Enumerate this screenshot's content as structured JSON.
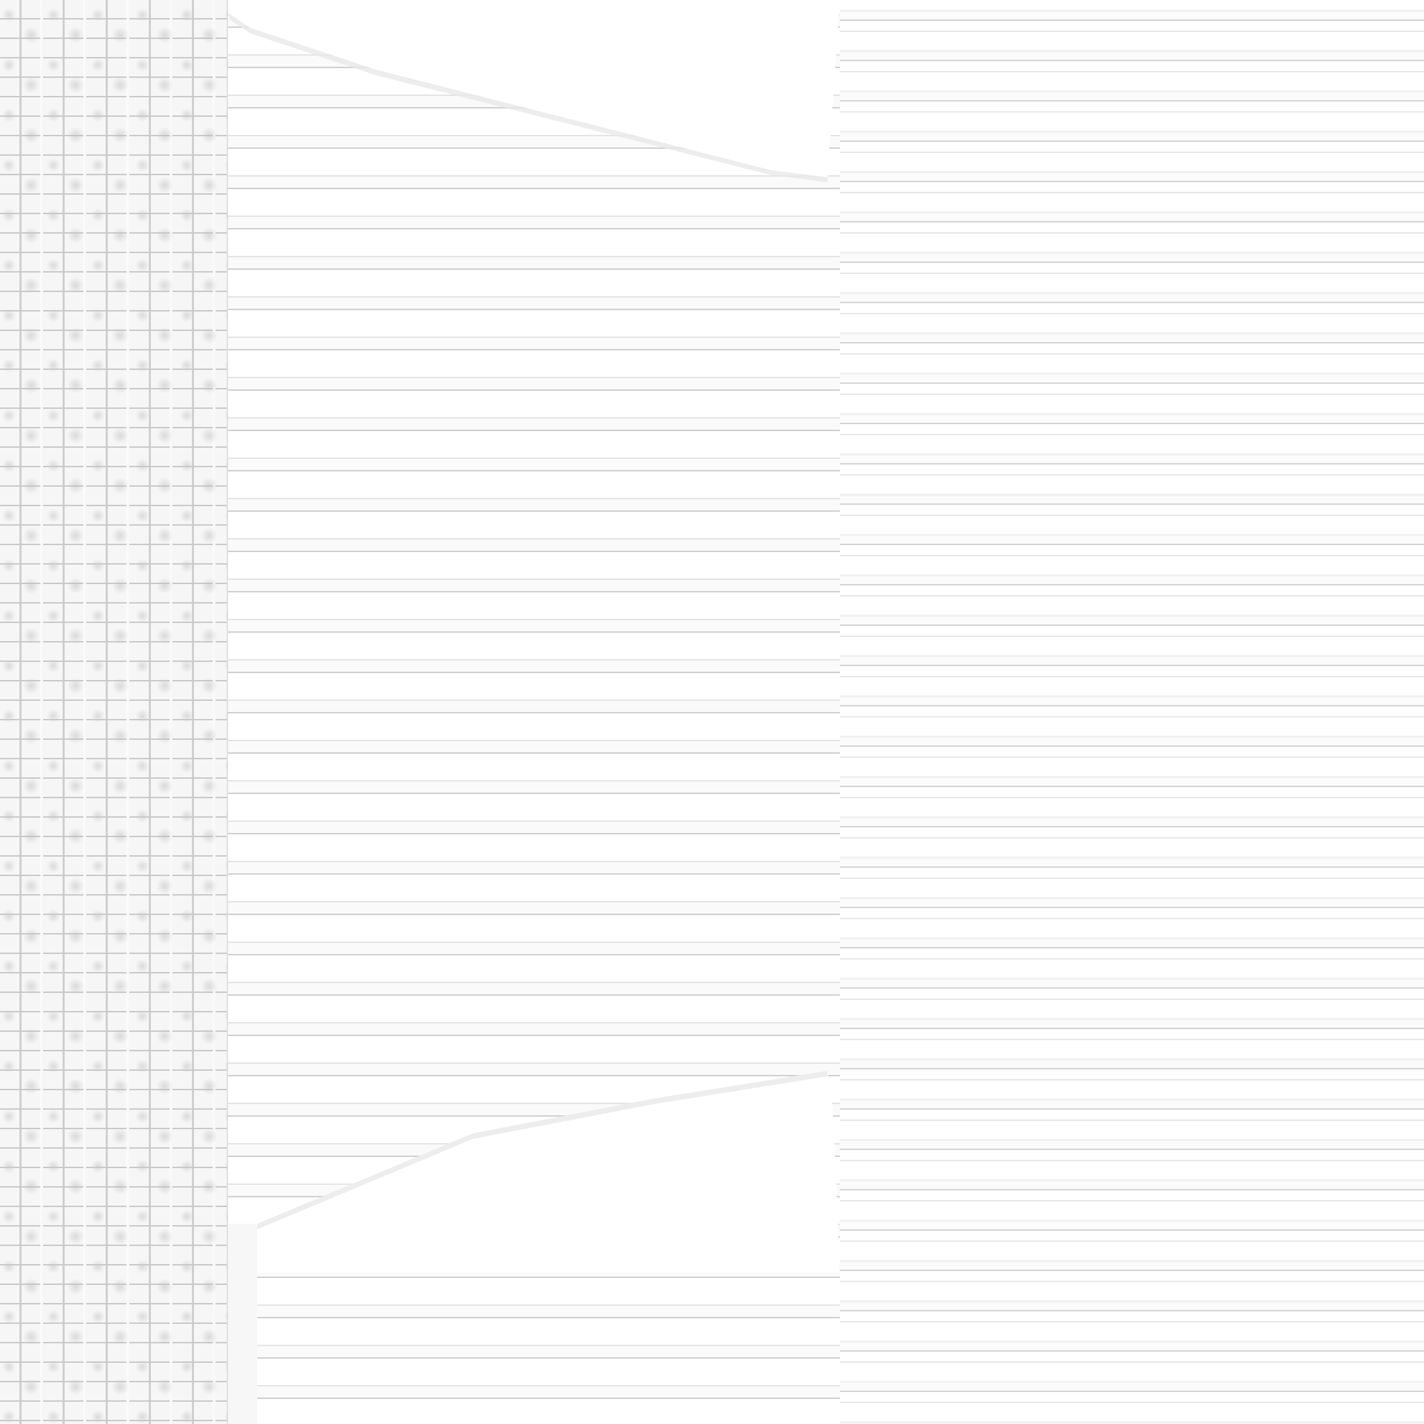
{
  "scene": {
    "colors": {
      "background": "#ffffff",
      "stripe_light": "#f1f1f1",
      "stripe_mid": "#d4d4d4",
      "brick_base": "#f6f6f6",
      "mortar": "#c9c9c9",
      "paper_highlight": "#ffffff"
    },
    "elements": {
      "brick_column": "brick-texture",
      "paper_panel": "striped-paper",
      "top_fold": "folded-corner",
      "bottom_fold": "folded-corner"
    }
  }
}
